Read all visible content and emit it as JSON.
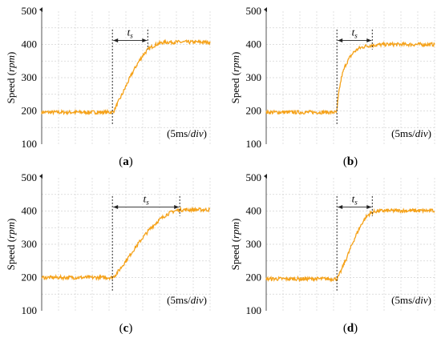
{
  "colors": {
    "signal": "#F5A21A",
    "grid": "#d4d4d4",
    "axis": "#555555",
    "marker": "#222222"
  },
  "chart_data": [
    {
      "type": "line",
      "caption": "(a)",
      "ylabel_main": "Speed",
      "ylabel_unit": "rpm",
      "yticks": [
        "100",
        "200",
        "300",
        "400",
        "500"
      ],
      "ylim": [
        100,
        500
      ],
      "xdiv": "5ms/div",
      "annotation": "t",
      "annotation_sub": "s",
      "series": [
        {
          "x": [
            0,
            4.2,
            4.3,
            4.5,
            4.8,
            5.1,
            5.4,
            5.7,
            6.0,
            6.3,
            6.6,
            6.9,
            7.2,
            7.5,
            8.0,
            10
          ],
          "y": [
            196,
            196,
            201,
            222,
            252,
            285,
            316,
            343,
            367,
            384,
            395,
            402,
            406,
            407,
            407,
            407
          ]
        }
      ],
      "settling_div": [
        4.2,
        6.3
      ]
    },
    {
      "type": "line",
      "caption": "(b)",
      "ylabel_main": "Speed",
      "ylabel_unit": "rpm",
      "yticks": [
        "100",
        "200",
        "300",
        "400",
        "500"
      ],
      "ylim": [
        100,
        500
      ],
      "xdiv": "5ms/div",
      "annotation": "t",
      "annotation_sub": "s",
      "series": [
        {
          "x": [
            0,
            4.2,
            4.25,
            4.35,
            4.5,
            4.7,
            4.95,
            5.2,
            5.5,
            5.9,
            6.3,
            6.7,
            7.2,
            10
          ],
          "y": [
            196,
            196,
            228,
            268,
            307,
            337,
            360,
            377,
            388,
            395,
            398,
            399,
            400,
            400
          ]
        }
      ],
      "settling_div": [
        4.2,
        6.3
      ]
    },
    {
      "type": "line",
      "caption": "(c)",
      "ylabel_main": "Speed",
      "ylabel_unit": "rpm",
      "yticks": [
        "100",
        "200",
        "300",
        "400",
        "500"
      ],
      "ylim": [
        100,
        500
      ],
      "xdiv": "5ms/div",
      "annotation": "t",
      "annotation_sub": "s",
      "series": [
        {
          "x": [
            0,
            4.2,
            4.35,
            4.6,
            5.0,
            5.5,
            6.0,
            6.5,
            7.0,
            7.4,
            7.8,
            8.1,
            8.4,
            8.8,
            10
          ],
          "y": [
            200,
            200,
            206,
            222,
            250,
            286,
            320,
            350,
            374,
            389,
            399,
            403,
            404,
            404,
            404
          ]
        }
      ],
      "settling_div": [
        4.2,
        8.2
      ]
    },
    {
      "type": "line",
      "caption": "(d)",
      "ylabel_main": "Speed",
      "ylabel_unit": "rpm",
      "yticks": [
        "100",
        "200",
        "300",
        "400",
        "500"
      ],
      "ylim": [
        100,
        500
      ],
      "xdiv": "5ms/div",
      "annotation": "t",
      "annotation_sub": "s",
      "series": [
        {
          "x": [
            0,
            4.2,
            4.3,
            4.5,
            4.8,
            5.1,
            5.4,
            5.7,
            5.95,
            6.2,
            6.5,
            7.0,
            10
          ],
          "y": [
            196,
            196,
            204,
            226,
            262,
            300,
            335,
            364,
            383,
            394,
            399,
            401,
            401
          ]
        }
      ],
      "settling_div": [
        4.2,
        6.3
      ]
    }
  ]
}
